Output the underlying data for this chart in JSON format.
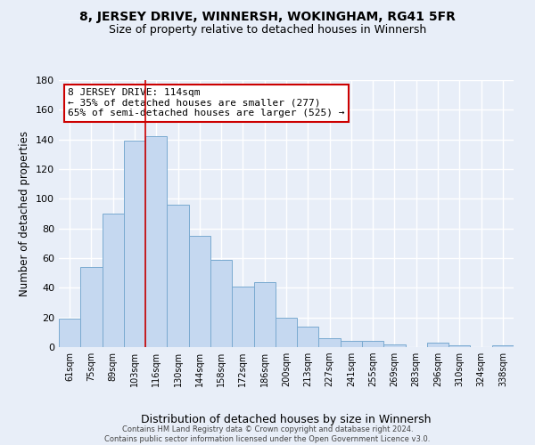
{
  "title": "8, JERSEY DRIVE, WINNERSH, WOKINGHAM, RG41 5FR",
  "subtitle": "Size of property relative to detached houses in Winnersh",
  "xlabel": "Distribution of detached houses by size in Winnersh",
  "ylabel": "Number of detached properties",
  "bar_labels": [
    "61sqm",
    "75sqm",
    "89sqm",
    "103sqm",
    "116sqm",
    "130sqm",
    "144sqm",
    "158sqm",
    "172sqm",
    "186sqm",
    "200sqm",
    "213sqm",
    "227sqm",
    "241sqm",
    "255sqm",
    "269sqm",
    "283sqm",
    "296sqm",
    "310sqm",
    "324sqm",
    "338sqm"
  ],
  "bar_values": [
    19,
    54,
    90,
    139,
    142,
    96,
    75,
    59,
    41,
    44,
    20,
    14,
    6,
    4,
    4,
    2,
    0,
    3,
    1,
    0,
    1
  ],
  "bar_color": "#c5d8f0",
  "bar_edge_color": "#7aaad0",
  "vline_color": "#cc0000",
  "ylim": [
    0,
    180
  ],
  "yticks": [
    0,
    20,
    40,
    60,
    80,
    100,
    120,
    140,
    160,
    180
  ],
  "annotation_text": "8 JERSEY DRIVE: 114sqm\n← 35% of detached houses are smaller (277)\n65% of semi-detached houses are larger (525) →",
  "annotation_box_color": "#ffffff",
  "annotation_box_edge": "#cc0000",
  "footer": "Contains HM Land Registry data © Crown copyright and database right 2024.\nContains public sector information licensed under the Open Government Licence v3.0.",
  "background_color": "#e8eef8",
  "grid_color": "#ffffff",
  "title_fontsize": 10,
  "subtitle_fontsize": 9,
  "xlabel_fontsize": 9,
  "ylabel_fontsize": 8.5
}
